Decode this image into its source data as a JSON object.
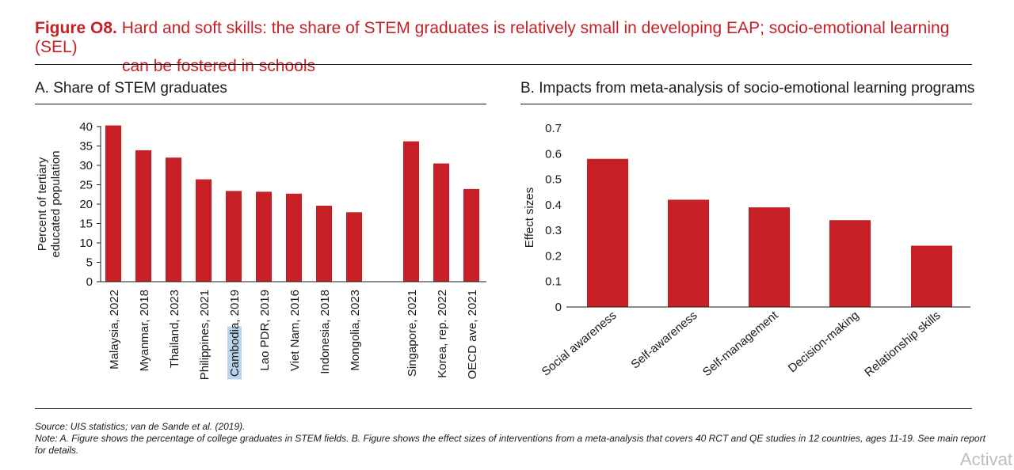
{
  "figure": {
    "label": "Figure O8.",
    "title_line1": "Hard and soft skills: the share of STEM graduates is relatively small in developing EAP; socio-emotional learning (SEL)",
    "title_line2": "can be fostered in schools"
  },
  "panel_a": {
    "title": "A. Share of STEM graduates"
  },
  "panel_b": {
    "title": "B. Impacts from meta-analysis of socio-emotional learning programs"
  },
  "chart_data": [
    {
      "type": "bar",
      "title": "A. Share of STEM graduates",
      "ylabel_line1": "Percent of tertiary",
      "ylabel_line2": "educated population",
      "xlabel": "",
      "ylim": [
        0,
        40
      ],
      "yticks": [
        0,
        5,
        10,
        15,
        20,
        25,
        30,
        35,
        40
      ],
      "categories": [
        "Malaysia, 2022",
        "Myanmar, 2018",
        "Thailand, 2023",
        "Philippines, 2021",
        "Cambodia, 2019",
        "Lao PDR, 2019",
        "Viet Nam, 2016",
        "Indonesia, 2018",
        "Mongolia, 2023",
        "Singapore, 2021",
        "Korea, rep. 2022",
        "OECD ave, 2021"
      ],
      "values": [
        40.3,
        33.9,
        32.0,
        26.4,
        23.4,
        23.2,
        22.7,
        19.6,
        17.9,
        36.2,
        30.5,
        23.9
      ],
      "highlighted_text": "Cambodia",
      "color": "#c62026"
    },
    {
      "type": "bar",
      "title": "B. Impacts from meta-analysis of socio-emotional learning programs",
      "ylabel": "Effect sizes",
      "xlabel": "",
      "ylim": [
        0,
        0.7
      ],
      "yticks": [
        "0",
        "0.1",
        "0.2",
        "0.3",
        "0.4",
        "0.5",
        "0.6",
        "0.7"
      ],
      "categories": [
        "Social awareness",
        "Self-awareness",
        "Self-management",
        "Decision-making",
        "Relationship skills"
      ],
      "values": [
        0.58,
        0.42,
        0.39,
        0.34,
        0.24
      ],
      "color": "#c62026"
    }
  ],
  "footer": {
    "source": "Source: UIS statistics; van de Sande et al. (2019).",
    "note": "Note: A. Figure shows the percentage of college graduates in STEM fields. B. Figure shows the effect sizes of interventions from a meta-analysis that covers 40 RCT and QE studies in 12 countries, ages 11-19. See main report for details."
  },
  "watermark": "Activat"
}
